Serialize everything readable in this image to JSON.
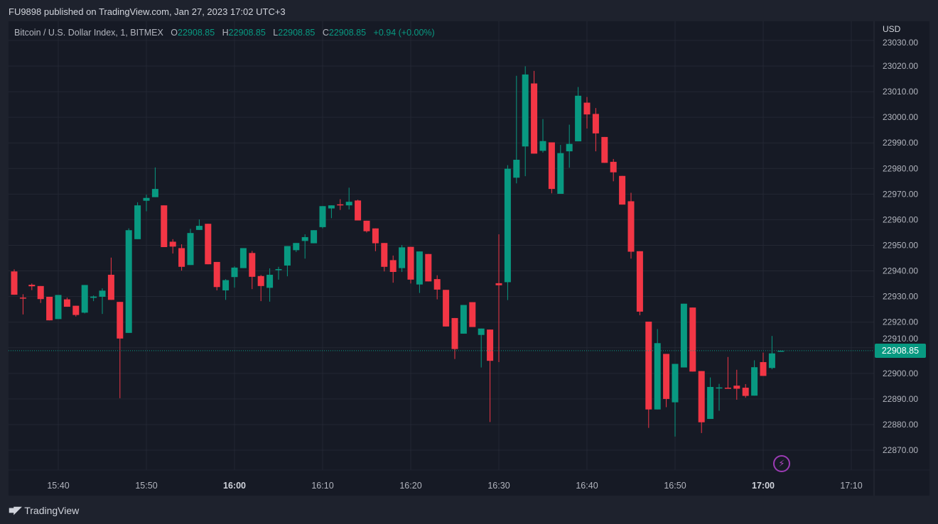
{
  "header": {
    "published": "FU9898 published on TradingView.com, Jan 27, 2023 17:02 UTC+3"
  },
  "legend": {
    "symbol": "Bitcoin / U.S. Dollar Index, 1, BITMEX",
    "o_label": "O",
    "o_value": "22908.85",
    "h_label": "H",
    "h_value": "22908.85",
    "l_label": "L",
    "l_value": "22908.85",
    "c_label": "C",
    "c_value": "22908.85",
    "change": "+0.94 (+0.00%)"
  },
  "price_scale": {
    "currency": "USD",
    "last_price": "22908.85"
  },
  "footer": {
    "logo_mark": "TV",
    "logo_text": "TradingView"
  },
  "icons": {
    "lightning": "lightning-icon"
  },
  "colors": {
    "up": "#089981",
    "down": "#f23645",
    "background": "#161a25",
    "grid": "#232733",
    "text": "#b2b5be",
    "alert_icon": "#ab47bc"
  },
  "chart_data": {
    "type": "candlestick",
    "title": "",
    "xlabel": "",
    "ylabel": "",
    "grid": true,
    "ylim": [
      22862,
      23032
    ],
    "xlim": [
      "15:34",
      "17:13"
    ],
    "y_ticks": [
      "23030.00",
      "23020.00",
      "23010.00",
      "23000.00",
      "22990.00",
      "22980.00",
      "22970.00",
      "22960.00",
      "22950.00",
      "22940.00",
      "22930.00",
      "22920.00",
      "22910.00",
      "22900.00",
      "22890.00",
      "22880.00",
      "22870.00"
    ],
    "x_ticks": [
      "15:40",
      "15:50",
      "16:00",
      "16:10",
      "16:20",
      "16:30",
      "16:40",
      "16:50",
      "17:00",
      "17:10"
    ],
    "last_price": 22908.85,
    "columns": [
      "time",
      "open",
      "high",
      "low",
      "close"
    ],
    "candles": [
      [
        "15:35",
        22939.8,
        22940.6,
        22930.7,
        22930.7
      ],
      [
        "15:36",
        22929.6,
        22930.9,
        22923.0,
        22929.4
      ],
      [
        "15:37",
        22934.6,
        22935.1,
        22932.5,
        22934.0
      ],
      [
        "15:38",
        22934.1,
        22934.1,
        22927.5,
        22929.0
      ],
      [
        "15:39",
        22929.9,
        22929.9,
        22920.7,
        22920.7
      ],
      [
        "15:40",
        22921.2,
        22930.6,
        22921.2,
        22930.6
      ],
      [
        "15:41",
        22928.9,
        22929.6,
        22926.0,
        22926.0
      ],
      [
        "15:42",
        22926.4,
        22926.4,
        22922.2,
        22922.8
      ],
      [
        "15:43",
        22923.7,
        22934.5,
        22923.4,
        22934.5
      ],
      [
        "15:44",
        22929.5,
        22930.4,
        22928.2,
        22930.0
      ],
      [
        "15:45",
        22929.9,
        22933.2,
        22923.2,
        22932.3
      ],
      [
        "15:46",
        22938.5,
        22945.2,
        22928.7,
        22928.7
      ],
      [
        "15:47",
        22927.9,
        22927.9,
        22890.3,
        22913.6
      ],
      [
        "15:48",
        22915.8,
        22956.6,
        22915.8,
        22955.9
      ],
      [
        "15:49",
        22952.4,
        22966.8,
        22952.4,
        22965.6
      ],
      [
        "15:50",
        22967.4,
        22969.8,
        22963.3,
        22968.5
      ],
      [
        "15:51",
        22968.8,
        22980.4,
        22968.8,
        22972.0
      ],
      [
        "15:52",
        22965.6,
        22965.6,
        22949.3,
        22949.3
      ],
      [
        "15:53",
        22951.4,
        22952.4,
        22946.8,
        22949.5
      ],
      [
        "15:54",
        22948.9,
        22950.4,
        22940.1,
        22941.6
      ],
      [
        "15:55",
        22942.3,
        22956.4,
        22942.3,
        22954.8
      ],
      [
        "15:56",
        22956.0,
        22960.1,
        22956.0,
        22957.6
      ],
      [
        "15:57",
        22958.4,
        22958.4,
        22942.6,
        22942.6
      ],
      [
        "15:58",
        22943.5,
        22943.5,
        22932.4,
        22933.7
      ],
      [
        "15:59",
        22932.4,
        22936.8,
        22928.7,
        22936.4
      ],
      [
        "16:00",
        22937.6,
        22941.8,
        22933.5,
        22941.3
      ],
      [
        "16:01",
        22941.1,
        22948.9,
        22941.1,
        22948.9
      ],
      [
        "16:02",
        22947.0,
        22947.8,
        22932.9,
        22937.7
      ],
      [
        "16:03",
        22938.0,
        22938.4,
        22928.2,
        22934.1
      ],
      [
        "16:04",
        22933.4,
        22941.0,
        22928.0,
        22938.5
      ],
      [
        "16:05",
        22940.5,
        22941.6,
        22936.6,
        22940.7
      ],
      [
        "16:06",
        22942.1,
        22949.7,
        22937.9,
        22949.7
      ],
      [
        "16:07",
        22948.1,
        22950.9,
        22947.4,
        22950.9
      ],
      [
        "16:08",
        22951.7,
        22954.3,
        22944.8,
        22953.2
      ],
      [
        "16:09",
        22950.8,
        22955.9,
        22950.8,
        22955.9
      ],
      [
        "16:10",
        22957.1,
        22965.3,
        22956.6,
        22965.3
      ],
      [
        "16:11",
        22964.4,
        22965.6,
        22960.6,
        22965.6
      ],
      [
        "16:12",
        22966.0,
        22968.0,
        22963.8,
        22965.8
      ],
      [
        "16:13",
        22965.6,
        22972.5,
        22964.0,
        22967.0
      ],
      [
        "16:14",
        22967.5,
        22967.8,
        22959.7,
        22959.7
      ],
      [
        "16:15",
        22959.6,
        22959.6,
        22955.0,
        22955.5
      ],
      [
        "16:16",
        22956.6,
        22956.6,
        22947.7,
        22950.8
      ],
      [
        "16:17",
        22950.9,
        22950.9,
        22939.8,
        22941.6
      ],
      [
        "16:18",
        22944.2,
        22946.0,
        22935.4,
        22939.6
      ],
      [
        "16:19",
        22941.1,
        22950.1,
        22939.6,
        22949.2
      ],
      [
        "16:20",
        22949.4,
        22949.4,
        22935.1,
        22936.6
      ],
      [
        "16:21",
        22934.7,
        22947.6,
        22931.4,
        22947.6
      ],
      [
        "16:22",
        22946.6,
        22946.6,
        22935.9,
        22935.9
      ],
      [
        "16:23",
        22936.8,
        22938.3,
        22928.9,
        22932.7
      ],
      [
        "16:24",
        22932.6,
        22932.6,
        22918.3,
        22918.3
      ],
      [
        "16:25",
        22921.6,
        22921.6,
        22905.6,
        22909.5
      ],
      [
        "16:26",
        22915.5,
        22926.7,
        22915.5,
        22926.7
      ],
      [
        "16:27",
        22927.8,
        22927.8,
        22918.1,
        22918.1
      ],
      [
        "16:28",
        22915.0,
        22917.5,
        22902.3,
        22917.5
      ],
      [
        "16:29",
        22917.1,
        22917.1,
        22881.0,
        22904.9
      ],
      [
        "16:30",
        22935.2,
        22954.3,
        22904.4,
        22934.4
      ],
      [
        "16:31",
        22935.6,
        22981.3,
        22928.6,
        22979.9
      ],
      [
        "16:32",
        22976.4,
        23016.2,
        22974.2,
        22983.4
      ],
      [
        "16:33",
        22988.6,
        23019.9,
        22977.0,
        23016.7
      ],
      [
        "16:34",
        23013.2,
        23018.1,
        22985.8,
        22985.8
      ],
      [
        "16:35",
        22986.9,
        22999.3,
        22986.2,
        22990.7
      ],
      [
        "16:36",
        22990.2,
        22990.2,
        22970.3,
        22972.0
      ],
      [
        "16:37",
        22970.1,
        22989.2,
        22970.1,
        22986.0
      ],
      [
        "16:38",
        22986.7,
        22997.1,
        22980.3,
        22989.6
      ],
      [
        "16:39",
        22990.6,
        23011.8,
        22990.6,
        23008.4
      ],
      [
        "16:40",
        23005.7,
        23007.9,
        22995.6,
        23001.1
      ],
      [
        "16:41",
        23001.3,
        23003.6,
        22986.7,
        22993.7
      ],
      [
        "16:42",
        22992.3,
        22992.3,
        22982.2,
        22982.2
      ],
      [
        "16:43",
        22982.6,
        22983.7,
        22975.0,
        22978.5
      ],
      [
        "16:44",
        22977.1,
        22977.1,
        22965.9,
        22965.9
      ],
      [
        "16:45",
        22967.2,
        22970.5,
        22944.8,
        22947.5
      ],
      [
        "16:46",
        22947.7,
        22947.7,
        22922.7,
        22924.1
      ],
      [
        "16:47",
        22920.2,
        22920.2,
        22878.7,
        22885.9
      ],
      [
        "16:48",
        22885.9,
        22917.3,
        22885.9,
        22911.8
      ],
      [
        "16:49",
        22907.6,
        22907.6,
        22886.8,
        22890.0
      ],
      [
        "16:50",
        22888.7,
        22903.7,
        22875.3,
        22903.7
      ],
      [
        "16:51",
        22902.3,
        22927.2,
        22902.3,
        22927.2
      ],
      [
        "16:52",
        22925.7,
        22925.7,
        22900.7,
        22900.7
      ],
      [
        "16:53",
        22900.9,
        22900.9,
        22876.7,
        22880.9
      ],
      [
        "16:54",
        22882.2,
        22898.4,
        22882.2,
        22894.7
      ],
      [
        "16:55",
        22894.3,
        22895.9,
        22885.4,
        22894.5
      ],
      [
        "16:56",
        22894.4,
        22906.4,
        22894.1,
        22894.1
      ],
      [
        "16:57",
        22895.2,
        22901.4,
        22889.7,
        22894.0
      ],
      [
        "16:58",
        22894.4,
        22895.8,
        22890.5,
        22891.2
      ],
      [
        "16:59",
        22891.3,
        22905.1,
        22891.3,
        22902.4
      ],
      [
        "17:00",
        22904.4,
        22908.1,
        22899.0,
        22899.0
      ],
      [
        "17:01",
        22902.1,
        22914.6,
        22901.6,
        22907.8
      ],
      [
        "17:02",
        22908.85,
        22908.85,
        22908.85,
        22908.85
      ]
    ]
  }
}
